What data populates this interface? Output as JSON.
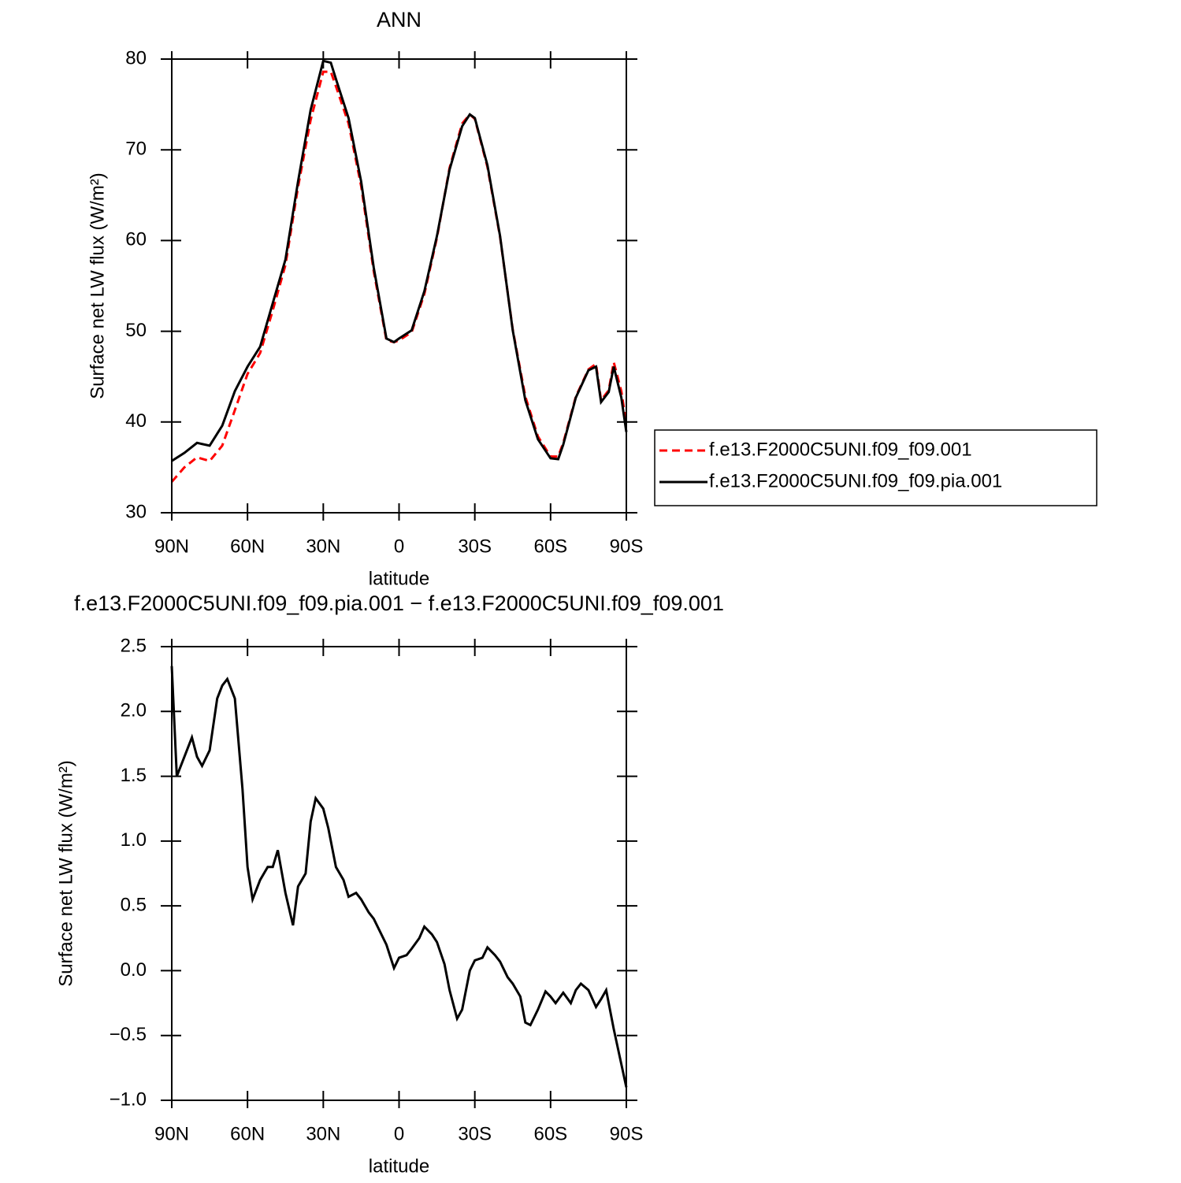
{
  "chart_data": [
    {
      "type": "line",
      "title": "ANN",
      "xlabel": "latitude",
      "ylabel": "Surface net LW flux (W/m²)",
      "x": [
        90,
        85,
        80,
        75,
        70,
        65,
        60,
        55,
        50,
        45,
        40,
        35,
        30,
        27,
        25,
        20,
        15,
        10,
        5,
        2,
        0,
        -5,
        -10,
        -15,
        -20,
        -25,
        -28,
        -30,
        -35,
        -40,
        -45,
        -50,
        -55,
        -60,
        -63,
        -65,
        -70,
        -75,
        -78,
        -80,
        -83,
        -85,
        -88,
        -90
      ],
      "series": [
        {
          "name": "f.e13.F2000C5UNI.f09_f09.001",
          "color": "#ff0000",
          "linestyle": "dashed",
          "values": [
            33.4,
            35.0,
            36.1,
            35.7,
            37.4,
            41.3,
            45.3,
            47.6,
            52.3,
            57.3,
            65.9,
            73.3,
            78.6,
            78.6,
            77.0,
            72.9,
            66.0,
            56.6,
            49.0,
            48.8,
            49.0,
            49.9,
            54.1,
            60.3,
            68.0,
            72.9,
            73.9,
            73.4,
            68.1,
            60.4,
            50.2,
            42.8,
            38.4,
            36.2,
            36.2,
            37.7,
            42.8,
            45.8,
            46.4,
            42.4,
            43.5,
            46.6,
            43.4,
            39.8
          ]
        },
        {
          "name": "f.e13.F2000C5UNI.f09_f09.pia.001",
          "color": "#000000",
          "linestyle": "solid",
          "values": [
            35.7,
            36.6,
            37.7,
            37.4,
            39.6,
            43.4,
            46.1,
            48.3,
            53.1,
            57.9,
            66.5,
            74.4,
            79.8,
            79.6,
            77.8,
            73.5,
            66.5,
            57.0,
            49.2,
            48.8,
            49.2,
            50.1,
            54.4,
            60.5,
            67.8,
            72.6,
            73.9,
            73.5,
            68.3,
            60.5,
            50.1,
            42.4,
            38.1,
            36.0,
            35.9,
            37.5,
            42.7,
            45.7,
            46.1,
            42.2,
            43.3,
            46.1,
            42.7,
            38.9
          ]
        }
      ],
      "xlim": [
        90,
        -90
      ],
      "ylim": [
        30,
        80
      ],
      "xticks": [
        {
          "value": 90,
          "label": "90N"
        },
        {
          "value": 60,
          "label": "60N"
        },
        {
          "value": 30,
          "label": "30N"
        },
        0,
        {
          "value": -30,
          "label": "30S"
        },
        {
          "value": -60,
          "label": "60S"
        },
        {
          "value": -90,
          "label": "90S"
        }
      ],
      "yticks": [
        30,
        40,
        50,
        60,
        70,
        80
      ],
      "legend": "right"
    },
    {
      "type": "line",
      "title": "f.e13.F2000C5UNI.f09_f09.pia.001 − f.e13.F2000C5UNI.f09_f09.001",
      "xlabel": "latitude",
      "ylabel": "Surface net LW flux (W/m²)",
      "x": [
        90,
        88,
        85,
        82,
        80,
        78,
        75,
        72,
        70,
        68,
        65,
        62,
        60,
        58,
        55,
        52,
        50,
        48,
        45,
        42,
        40,
        37,
        35,
        33,
        30,
        28,
        25,
        22,
        20,
        17,
        15,
        12,
        10,
        5,
        2,
        0,
        -3,
        -5,
        -8,
        -10,
        -13,
        -15,
        -18,
        -20,
        -23,
        -25,
        -28,
        -30,
        -33,
        -35,
        -38,
        -40,
        -43,
        -45,
        -48,
        -50,
        -52,
        -55,
        -58,
        -60,
        -62,
        -65,
        -68,
        -70,
        -72,
        -75,
        -78,
        -80,
        -82,
        -85,
        -88,
        -90
      ],
      "values": [
        2.35,
        1.5,
        1.65,
        1.8,
        1.65,
        1.58,
        1.7,
        2.1,
        2.2,
        2.25,
        2.1,
        1.4,
        0.8,
        0.55,
        0.7,
        0.8,
        0.8,
        0.93,
        0.6,
        0.35,
        0.65,
        0.75,
        1.15,
        1.33,
        1.25,
        1.1,
        0.8,
        0.7,
        0.57,
        0.6,
        0.55,
        0.45,
        0.4,
        0.2,
        0.02,
        0.1,
        0.12,
        0.17,
        0.25,
        0.34,
        0.28,
        0.22,
        0.05,
        -0.15,
        -0.37,
        -0.3,
        0.0,
        0.08,
        0.1,
        0.18,
        0.12,
        0.07,
        -0.05,
        -0.1,
        -0.2,
        -0.4,
        -0.42,
        -0.3,
        -0.16,
        -0.2,
        -0.25,
        -0.17,
        -0.25,
        -0.15,
        -0.1,
        -0.15,
        -0.28,
        -0.22,
        -0.15,
        -0.45,
        -0.72,
        -0.9
      ],
      "color": "#000000",
      "xlim": [
        90,
        -90
      ],
      "ylim": [
        -1.0,
        2.5
      ],
      "xticks": [
        {
          "value": 90,
          "label": "90N"
        },
        {
          "value": 60,
          "label": "60N"
        },
        {
          "value": 30,
          "label": "30N"
        },
        0,
        {
          "value": -30,
          "label": "30S"
        },
        {
          "value": -60,
          "label": "60S"
        },
        {
          "value": -90,
          "label": "90S"
        }
      ],
      "yticks": [
        {
          "value": -1.0,
          "label": "−1.0"
        },
        {
          "value": -0.5,
          "label": "−0.5"
        },
        {
          "value": 0.0,
          "label": "0.0"
        },
        0.5,
        {
          "value": 1.0,
          "label": "1.0"
        },
        1.5,
        {
          "value": 2.0,
          "label": "2.0"
        },
        2.5
      ]
    }
  ]
}
